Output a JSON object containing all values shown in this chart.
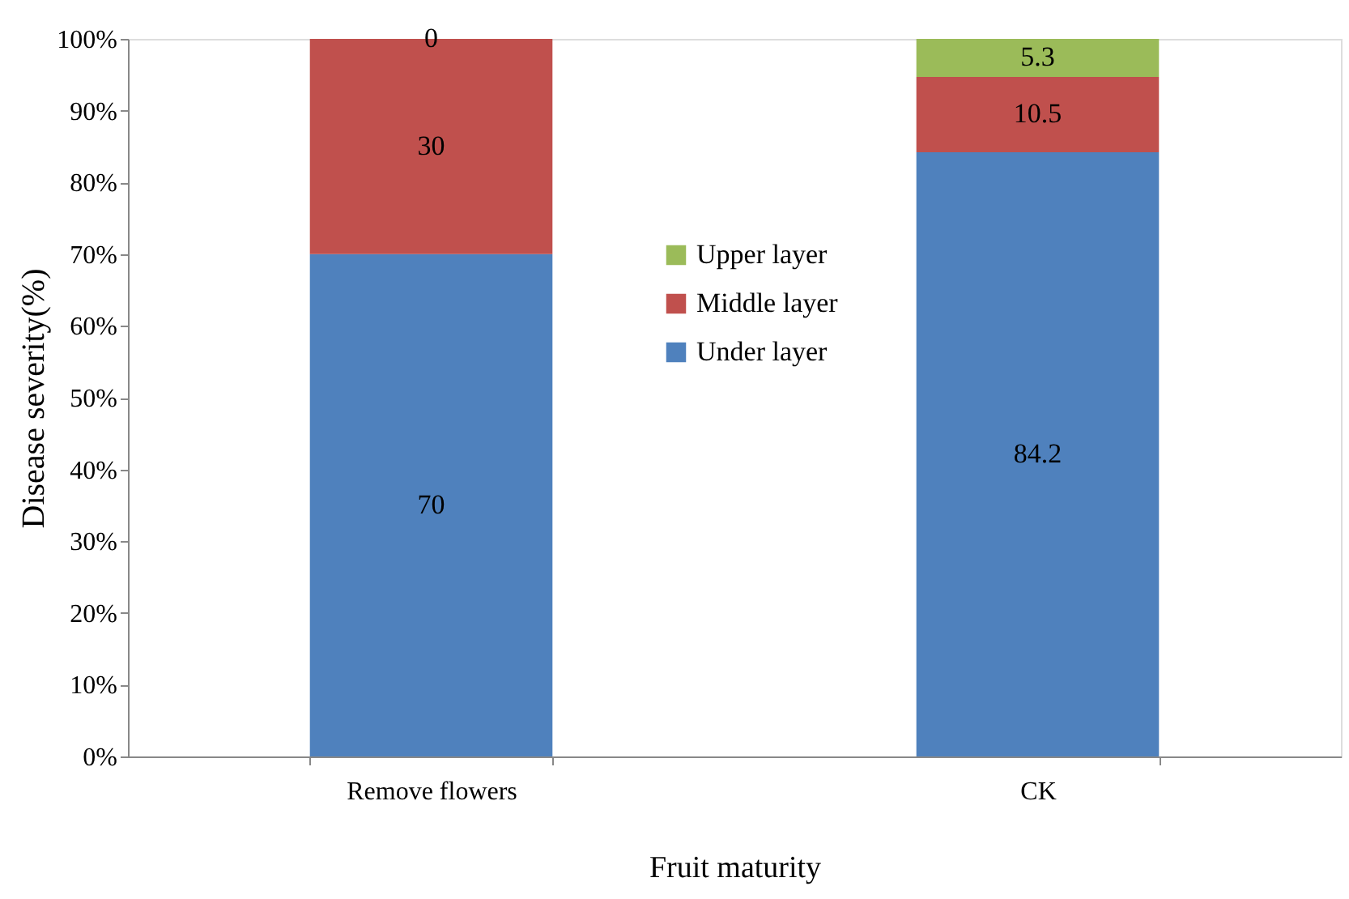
{
  "chart_data": {
    "type": "bar",
    "stacked": true,
    "xlabel": "Fruit maturity",
    "ylabel": "Disease severity(%)",
    "categories": [
      "Remove flowers",
      "CK"
    ],
    "series": [
      {
        "name": "Under layer",
        "color": "#4f81bd",
        "values": [
          70,
          84.2
        ]
      },
      {
        "name": "Middle layer",
        "color": "#c0504d",
        "values": [
          30,
          10.5
        ]
      },
      {
        "name": "Upper layer",
        "color": "#9bbb59",
        "values": [
          0,
          5.3
        ]
      }
    ],
    "ylim": [
      0,
      100
    ],
    "yticks": [
      {
        "value": 0,
        "label": "0%"
      },
      {
        "value": 10,
        "label": "10%"
      },
      {
        "value": 20,
        "label": "20%"
      },
      {
        "value": 30,
        "label": "30%"
      },
      {
        "value": 40,
        "label": "40%"
      },
      {
        "value": 50,
        "label": "50%"
      },
      {
        "value": 60,
        "label": "60%"
      },
      {
        "value": 70,
        "label": "70%"
      },
      {
        "value": 80,
        "label": "80%"
      },
      {
        "value": 90,
        "label": "90%"
      },
      {
        "value": 100,
        "label": "100%"
      }
    ],
    "data_labels": true,
    "legend": "center",
    "grid": false
  }
}
